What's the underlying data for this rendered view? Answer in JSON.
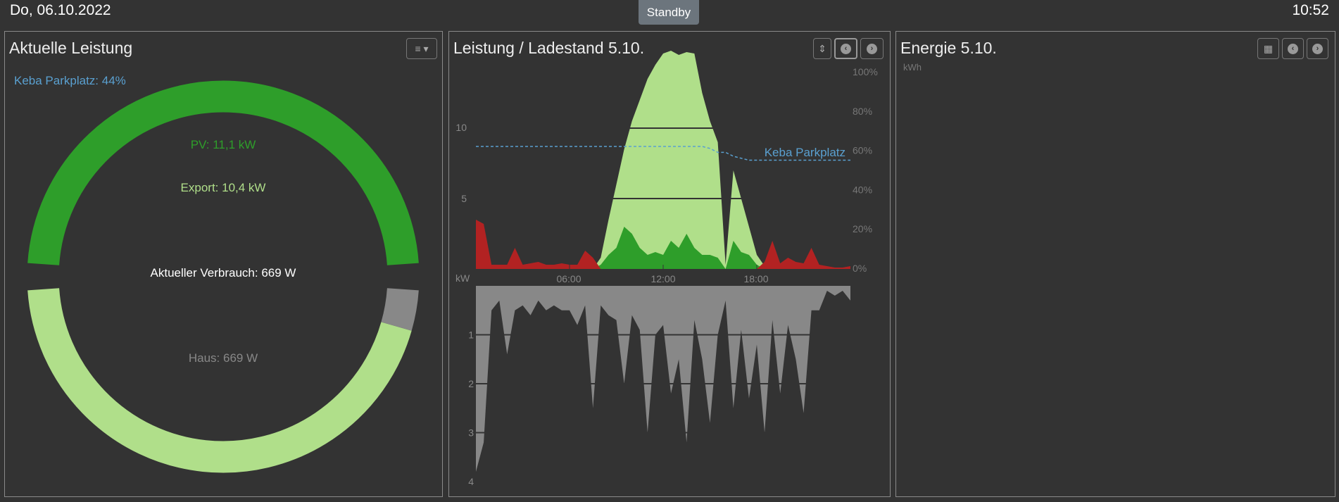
{
  "header": {
    "date": "Do, 06.10.2022",
    "standby_label": "Standby",
    "time": "10:52"
  },
  "colors": {
    "pv": "#b0df8a",
    "self_use": "#2e9e2a",
    "import": "#b22222",
    "consumption": "#888888",
    "keba": "#5aa0d0",
    "export_text": "#b0df8a",
    "pv_text": "#2e9e2a"
  },
  "left": {
    "title": "Aktuelle Leistung",
    "menu_icon": "menu-icon",
    "keba": "Keba Parkplatz: 44%",
    "pv": "PV: 11,1 kW",
    "export": "Export: 10,4 kW",
    "verbrauch": "Aktueller Verbrauch: 669 W",
    "haus": "Haus: 669 W"
  },
  "middle": {
    "title": "Leistung / Ladestand 5.10.",
    "buttons": [
      "sort-icon",
      "chevron-left-icon",
      "chevron-right-icon"
    ]
  },
  "right": {
    "title": "Energie 5.10.",
    "unit": "kWh",
    "buttons": [
      "calendar-icon",
      "chevron-left-icon",
      "chevron-right-icon"
    ]
  },
  "chart_data": [
    {
      "type": "area",
      "title": "Leistung / Ladestand 5.10.",
      "ylabel": "kW",
      "x_unit": "hours",
      "x_ticks": [
        "06:00",
        "12:00",
        "18:00"
      ],
      "y_ticks": [
        "5",
        "10"
      ],
      "y2_ticks": [
        "0%",
        "20%",
        "40%",
        "60%",
        "80%",
        "100%"
      ],
      "ylim": [
        0,
        14
      ],
      "y2lim": [
        0,
        100
      ],
      "x": [
        0,
        0.5,
        1,
        1.5,
        2,
        2.5,
        3,
        3.5,
        4,
        4.5,
        5,
        5.5,
        6,
        6.5,
        7,
        7.5,
        8,
        8.5,
        9,
        9.5,
        10,
        10.5,
        11,
        11.5,
        12,
        12.5,
        13,
        13.5,
        14,
        14.5,
        15,
        15.5,
        16,
        16.5,
        17,
        17.5,
        18,
        18.5,
        19,
        19.5,
        20,
        20.5,
        21,
        21.5,
        22,
        22.5,
        23,
        23.5,
        24
      ],
      "series": [
        {
          "key": "pv",
          "values": [
            0,
            0,
            0,
            0,
            0,
            0,
            0,
            0,
            0,
            0,
            0,
            0,
            0,
            0,
            0,
            0,
            0.8,
            3.5,
            6,
            8.5,
            10.5,
            12,
            13.5,
            14.5,
            15.3,
            15.5,
            15.2,
            15.4,
            15.3,
            12.5,
            10.5,
            9,
            0.3,
            7,
            5,
            3,
            1,
            0.2,
            0,
            0,
            0,
            0,
            0,
            0,
            0,
            0,
            0,
            0,
            0
          ]
        },
        {
          "key": "self_use",
          "values": [
            0,
            0,
            0,
            0,
            0,
            0,
            0,
            0,
            0,
            0,
            0,
            0,
            0,
            0,
            0,
            0,
            0.3,
            1,
            1.5,
            3,
            2.5,
            1.5,
            1,
            1.2,
            1,
            2,
            1.5,
            2.5,
            1.5,
            1,
            1,
            0.8,
            0,
            2,
            1.2,
            1,
            0.3,
            0,
            0,
            0,
            0,
            0,
            0,
            0,
            0,
            0,
            0,
            0,
            0
          ]
        },
        {
          "key": "import",
          "values": [
            3.5,
            3.2,
            0.3,
            0.3,
            0.3,
            1.5,
            0.3,
            0.4,
            0.5,
            0.3,
            0.3,
            0.4,
            0.3,
            0.3,
            1.3,
            0.8,
            0,
            0,
            0,
            0,
            0,
            0,
            0,
            0,
            0,
            0,
            0,
            0,
            0,
            0,
            0,
            0,
            0,
            0,
            0,
            0,
            0,
            0.5,
            2,
            0.4,
            0.8,
            0.5,
            0.4,
            1.5,
            0.3,
            0.2,
            0.1,
            0.1,
            0.2
          ]
        },
        {
          "name": "Keba Parkplatz",
          "key": "keba",
          "axis": "y2",
          "values": [
            62,
            62,
            62,
            62,
            62,
            62,
            62,
            62,
            62,
            62,
            62,
            62,
            62,
            62,
            62,
            62,
            62,
            62,
            62,
            62,
            62,
            62,
            62,
            62,
            62,
            62,
            62,
            62,
            62,
            62,
            61,
            59,
            59,
            57,
            56,
            55,
            55,
            55,
            55,
            55,
            55,
            55,
            55,
            55,
            55,
            55,
            55,
            55,
            55
          ]
        }
      ]
    },
    {
      "type": "area",
      "ylim": [
        0,
        4
      ],
      "y_ticks": [
        "1",
        "2",
        "3",
        "4"
      ],
      "inverted": true,
      "series": [
        {
          "key": "consumption",
          "values": [
            3.8,
            3.2,
            0.5,
            0.3,
            1.4,
            0.5,
            0.4,
            0.6,
            0.3,
            0.5,
            0.4,
            0.5,
            0.5,
            0.8,
            0.4,
            2.5,
            0.4,
            0.6,
            0.7,
            2.0,
            0.6,
            0.9,
            3.0,
            1.0,
            0.8,
            2.2,
            1.5,
            3.2,
            0.7,
            1.5,
            2.8,
            1.0,
            0.3,
            2.5,
            0.9,
            2.3,
            1.2,
            3.0,
            0.7,
            2.2,
            0.8,
            1.5,
            2.6,
            0.5,
            0.5,
            0.1,
            0.2,
            0.1,
            0.3
          ]
        }
      ]
    }
  ]
}
